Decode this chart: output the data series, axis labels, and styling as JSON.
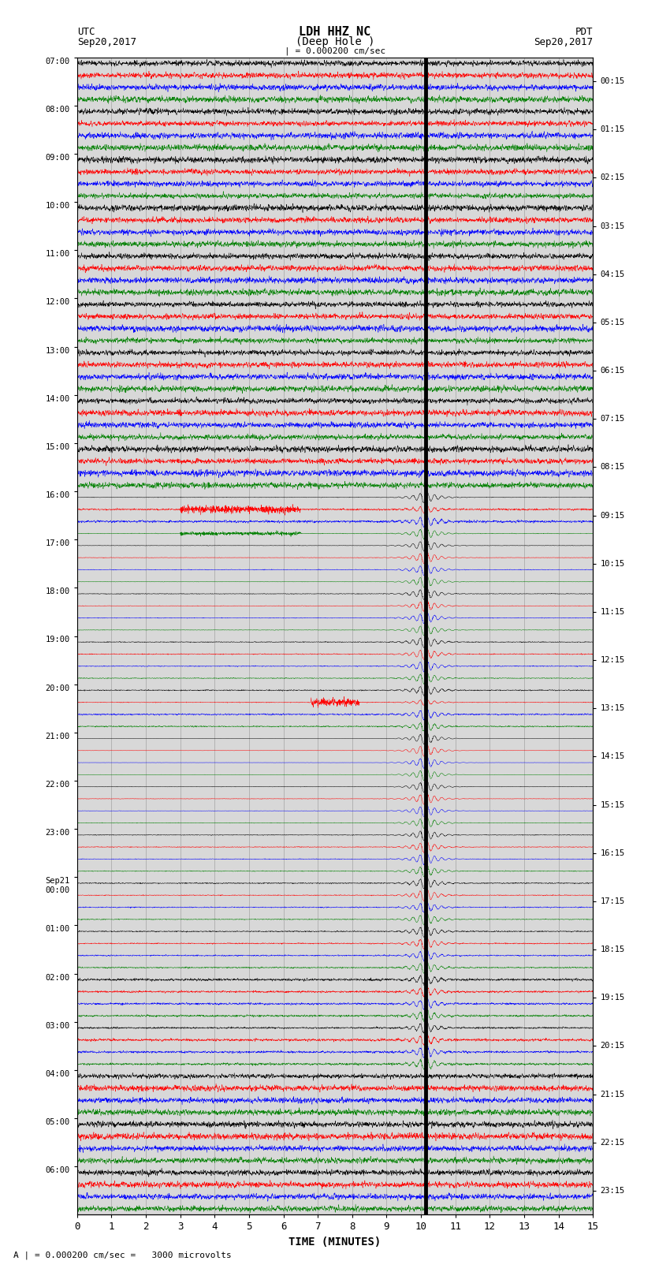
{
  "title_line1": "LDH HHZ NC",
  "title_line2": "(Deep Hole )",
  "scale_label": "| = 0.000200 cm/sec",
  "bottom_label": "A | = 0.000200 cm/sec =   3000 microvolts",
  "xlabel": "TIME (MINUTES)",
  "utc_label": "UTC",
  "utc_date": "Sep20,2017",
  "pdt_label": "PDT",
  "pdt_date": "Sep20,2017",
  "left_times_utc": [
    "07:00",
    "08:00",
    "09:00",
    "10:00",
    "11:00",
    "12:00",
    "13:00",
    "14:00",
    "15:00",
    "16:00",
    "17:00",
    "18:00",
    "19:00",
    "20:00",
    "21:00",
    "22:00",
    "23:00",
    "Sep21\n00:00",
    "01:00",
    "02:00",
    "03:00",
    "04:00",
    "05:00",
    "06:00"
  ],
  "right_times_pdt": [
    "00:15",
    "01:15",
    "02:15",
    "03:15",
    "04:15",
    "05:15",
    "06:15",
    "07:15",
    "08:15",
    "09:15",
    "10:15",
    "11:15",
    "12:15",
    "13:15",
    "14:15",
    "15:15",
    "16:15",
    "17:15",
    "18:15",
    "19:15",
    "20:15",
    "21:15",
    "22:15",
    "23:15"
  ],
  "bg_color": "#ffffff",
  "plot_bg": "#d8d8d8",
  "trace_colors": [
    "black",
    "red",
    "blue",
    "green"
  ],
  "grid_color": "#999999",
  "n_rows": 24,
  "n_traces_per_row": 4,
  "xmin": 0,
  "xmax": 15,
  "earthquake_time_minutes": 10.13,
  "eq_rows_affected": [
    9,
    10,
    11,
    12,
    13,
    14,
    15,
    16,
    17,
    18,
    19,
    20
  ],
  "noise_event_row_green": 9,
  "noise_event_row_red": 9,
  "noise_event2_row": 13,
  "noise_event2_col": 1
}
